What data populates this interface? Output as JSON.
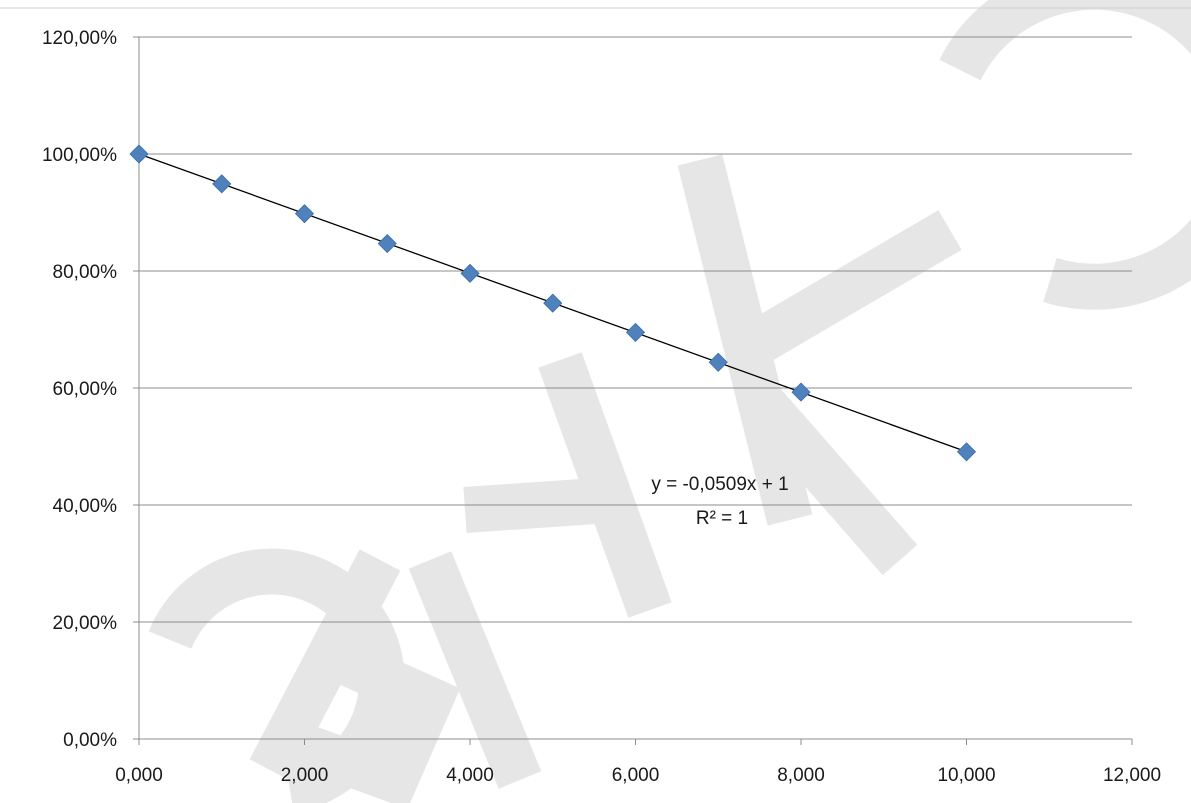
{
  "chart_data": {
    "type": "scatter",
    "x": [
      0,
      1,
      2,
      3,
      4,
      5,
      6,
      7,
      8,
      10
    ],
    "series": [
      {
        "values": [
          1.0,
          0.949,
          0.898,
          0.847,
          0.796,
          0.745,
          0.695,
          0.644,
          0.593,
          0.491
        ]
      }
    ],
    "trendline": {
      "type": "linear",
      "slope": -0.0509,
      "intercept": 1,
      "equation_label": "y = -0,0509x + 1",
      "r2_label": "R² = 1"
    },
    "xlim": [
      0,
      12
    ],
    "ylim": [
      0,
      1.2
    ],
    "x_ticks": [
      0,
      2,
      4,
      6,
      8,
      10,
      12
    ],
    "x_tick_labels": [
      "0,000",
      "2,000",
      "4,000",
      "6,000",
      "8,000",
      "10,000",
      "12,000"
    ],
    "y_ticks": [
      0,
      0.2,
      0.4,
      0.6,
      0.8,
      1.0,
      1.2
    ],
    "y_tick_labels": [
      "0,00%",
      "20,00%",
      "40,00%",
      "60,00%",
      "80,00%",
      "100,00%",
      "120,00%"
    ],
    "title": "",
    "xlabel": "",
    "ylabel": "",
    "grid": "horizontal",
    "marker_color": "#4f81bd",
    "trendline_color": "#000000",
    "gridline_color": "#8c8c8c",
    "watermark": "ОБИКС",
    "watermark_color": "#e6e6e6"
  }
}
